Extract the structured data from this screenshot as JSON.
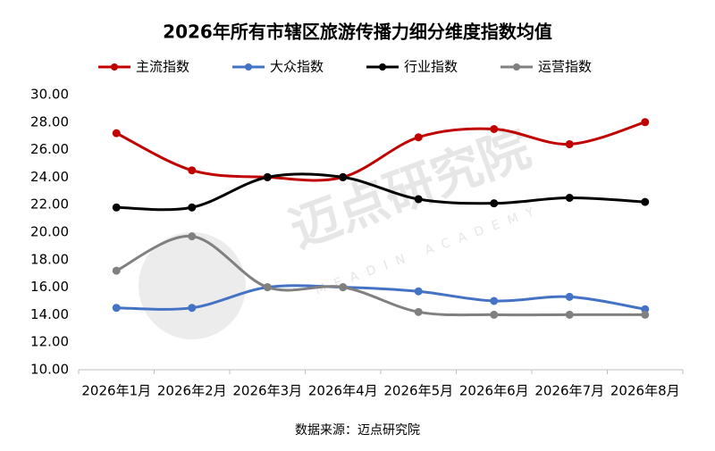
{
  "chart_data": {
    "type": "line",
    "title": "2026年所有市辖区旅游传播力细分维度指数均值",
    "source": "数据来源：迈点研究院",
    "watermark": "迈点研究院",
    "watermark_sub": "MEADIN ACADEMY",
    "categories": [
      "2026年1月",
      "2026年2月",
      "2026年3月",
      "2026年4月",
      "2026年5月",
      "2026年6月",
      "2026年7月",
      "2026年8月"
    ],
    "series": [
      {
        "name": "主流指数",
        "color": "#c00000",
        "values": [
          27.2,
          24.5,
          24.0,
          24.0,
          26.9,
          27.5,
          26.4,
          28.0
        ]
      },
      {
        "name": "大众指数",
        "color": "#4472c4",
        "values": [
          14.5,
          14.5,
          16.0,
          16.0,
          15.7,
          15.0,
          15.3,
          14.4
        ]
      },
      {
        "name": "行业指数",
        "color": "#000000",
        "values": [
          21.8,
          21.8,
          24.0,
          24.0,
          22.4,
          22.1,
          22.5,
          22.2
        ]
      },
      {
        "name": "运营指数",
        "color": "#808080",
        "values": [
          17.2,
          19.7,
          16.0,
          16.0,
          14.2,
          14.0,
          14.0,
          14.0
        ]
      }
    ],
    "ylim": [
      10,
      30
    ],
    "yticks": [
      {
        "value": 10,
        "label": "10.00"
      },
      {
        "value": 12,
        "label": "12.00"
      },
      {
        "value": 14,
        "label": "14.00"
      },
      {
        "value": 16,
        "label": "16.00"
      },
      {
        "value": 18,
        "label": "18.00"
      },
      {
        "value": 20,
        "label": "20.00"
      },
      {
        "value": 22,
        "label": "22.00"
      },
      {
        "value": 24,
        "label": "24.00"
      },
      {
        "value": 26,
        "label": "26.00"
      },
      {
        "value": 28,
        "label": "28.00"
      },
      {
        "value": 30,
        "label": "30.00"
      }
    ],
    "smooth": true
  }
}
